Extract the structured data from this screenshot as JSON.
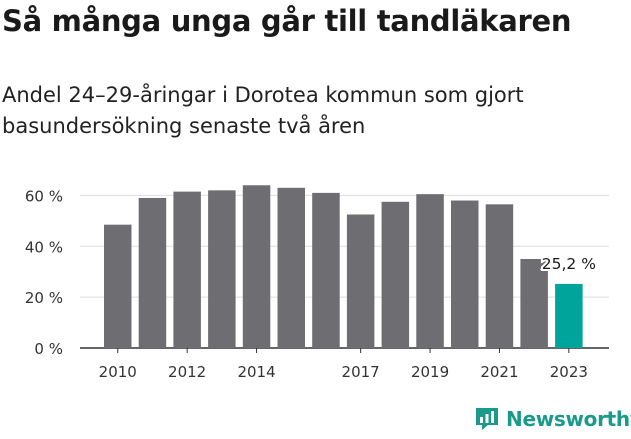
{
  "title": "Så många unga går till tandläkaren",
  "subtitle": "Andel 24–29-åringar i Dorotea kommun som gjort basundersökning senaste två åren",
  "logo_text": "Newsworthy",
  "colors": {
    "bar": "#6e6d72",
    "highlight": "#00a49a",
    "grid": "#dddddd",
    "axis": "#333333"
  },
  "chart_data": {
    "type": "bar",
    "title": "Så många unga går till tandläkaren",
    "subtitle": "Andel 24–29-åringar i Dorotea kommun som gjort basundersökning senaste två åren",
    "categories": [
      "2010",
      "2011",
      "2012",
      "2013",
      "2014",
      "2015",
      "2016",
      "2017",
      "2018",
      "2019",
      "2020",
      "2021",
      "2022",
      "2023"
    ],
    "values": [
      48.5,
      59,
      61.5,
      62,
      64,
      63,
      61,
      52.5,
      57.5,
      60.5,
      58,
      56.5,
      35,
      25.2
    ],
    "x_tick_labels": [
      "2010",
      "2012",
      "2014",
      "2017",
      "2019",
      "2021",
      "2023"
    ],
    "y_ticks": [
      0,
      20,
      40,
      60
    ],
    "y_tick_labels": [
      "0 %",
      "20 %",
      "40 %",
      "60 %"
    ],
    "ylim": [
      0,
      70
    ],
    "highlight_index": 13,
    "highlight_label": "25,2 %",
    "grid": true,
    "xlabel": "",
    "ylabel": ""
  }
}
